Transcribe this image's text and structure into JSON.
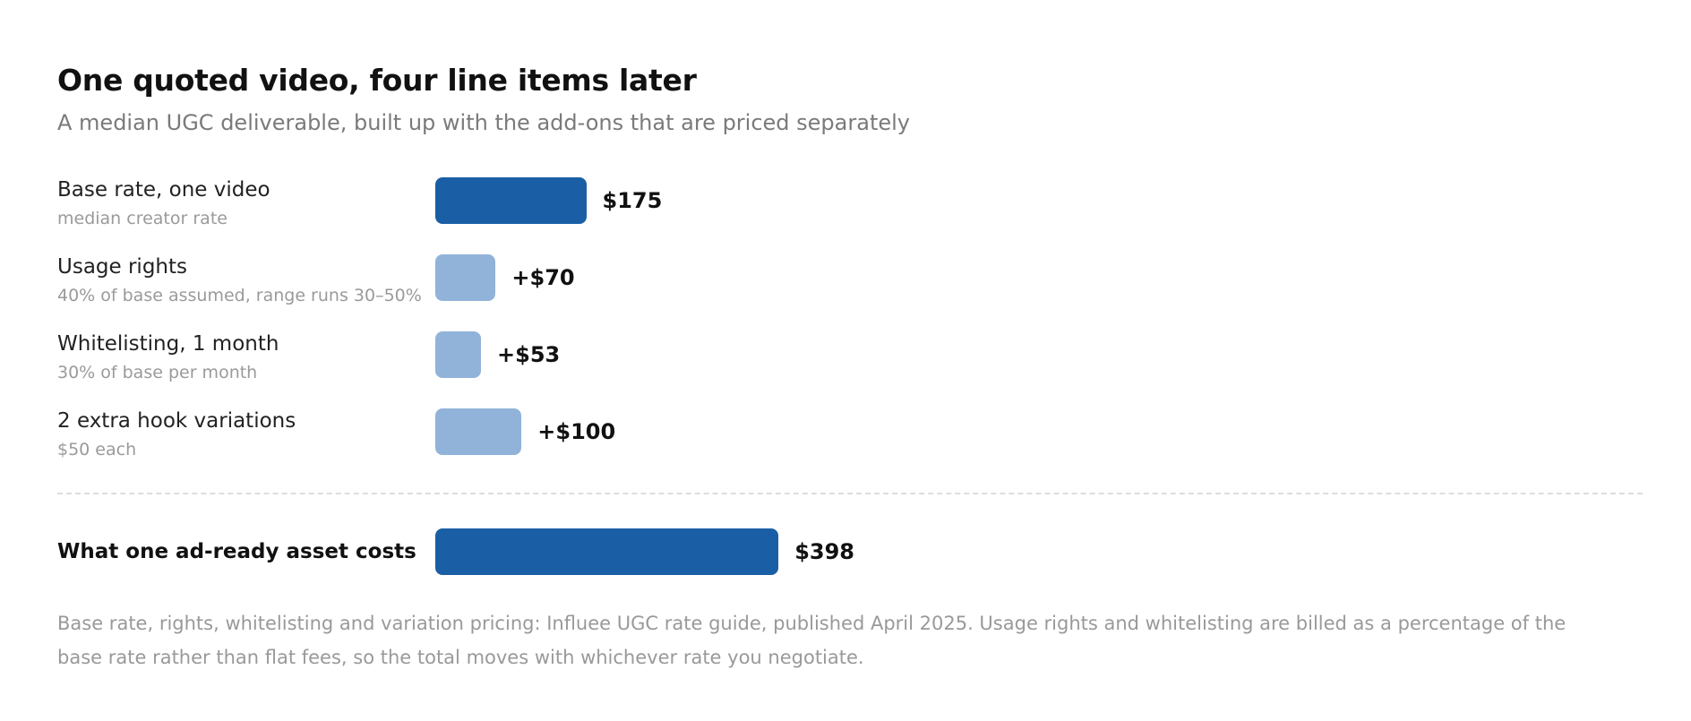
{
  "chart_data": {
    "type": "bar",
    "orientation": "horizontal",
    "title": "One quoted video, four line items later",
    "subtitle": "A median UGC deliverable, built up with the add-ons that are priced separately",
    "items": [
      {
        "label": "Base rate, one video",
        "sublabel": "median creator rate",
        "value": 175,
        "value_label": "$175",
        "kind": "base"
      },
      {
        "label": "Usage rights",
        "sublabel": "40% of base assumed, range runs 30–50%",
        "value": 70,
        "value_label": "+$70",
        "kind": "addon"
      },
      {
        "label": "Whitelisting, 1 month",
        "sublabel": "30% of base per month",
        "value": 53,
        "value_label": "+$53",
        "kind": "addon"
      },
      {
        "label": "2 extra hook variations",
        "sublabel": "$50 each",
        "value": 100,
        "value_label": "+$100",
        "kind": "addon"
      }
    ],
    "total": {
      "label": "What one ad-ready asset costs",
      "value": 398,
      "value_label": "$398"
    },
    "xlim": [
      0,
      1400
    ],
    "colors": {
      "base": "#1a5fa5",
      "addon": "#91b3d9",
      "total": "#1a5fa5"
    },
    "footnote": "Base rate, rights, whitelisting and variation pricing: Influee UGC rate guide, published April 2025. Usage rights and whitelisting are billed as a percentage of the base rate rather than flat fees, so the total moves with whichever rate you negotiate."
  }
}
